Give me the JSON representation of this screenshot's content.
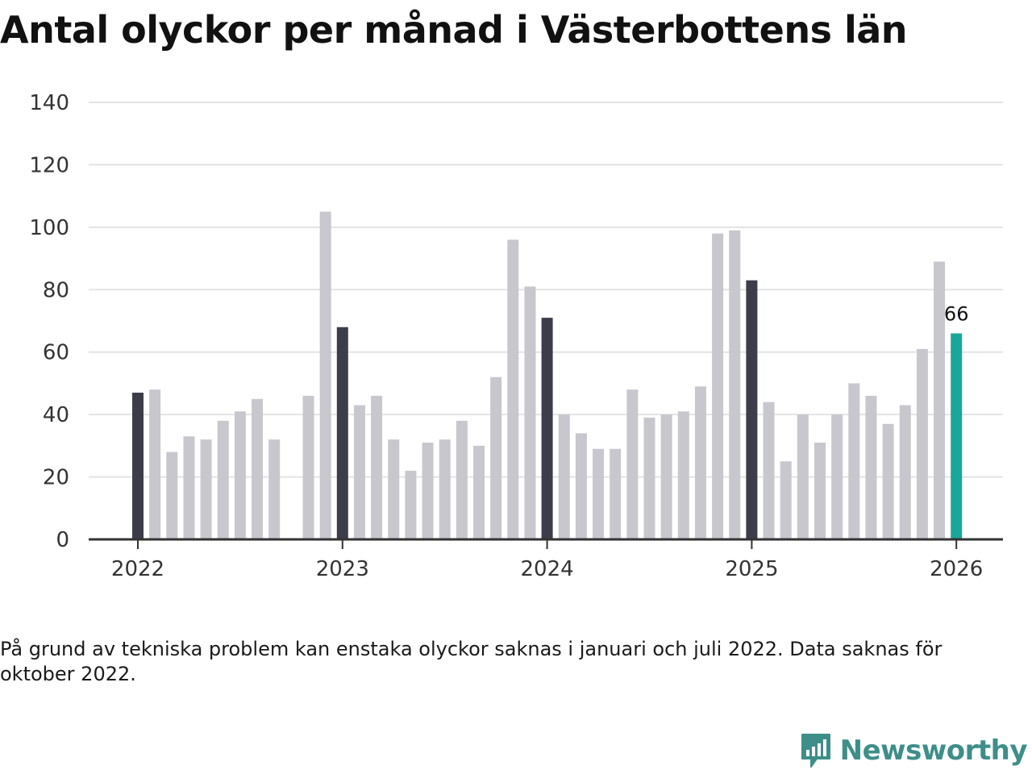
{
  "page": {
    "title": "Antal olyckor per månad i Västerbottens län",
    "note": "På grund av tekniska problem kan enstaka olyckor saknas i januari och juli 2022. Data saknas för oktober 2022.",
    "brand": "Newsworthy"
  },
  "colors": {
    "bar_default": "#c8c7ce",
    "bar_january": "#3d3c4a",
    "bar_latest": "#1ba69a",
    "gridline": "#e3e3e3",
    "axis": "#333333",
    "brand": "#3e8e89"
  },
  "chart_data": {
    "type": "bar",
    "title": "Antal olyckor per månad i Västerbottens län",
    "xlabel": "",
    "ylabel": "",
    "ylim": [
      0,
      140
    ],
    "yticks": [
      0,
      20,
      40,
      60,
      80,
      100,
      120,
      140
    ],
    "xticks": [
      "2022",
      "2023",
      "2024",
      "2025",
      "2026"
    ],
    "series": [
      {
        "name": "Antal olyckor",
        "points": [
          {
            "period": "2022-01",
            "value": 47
          },
          {
            "period": "2022-02",
            "value": 48
          },
          {
            "period": "2022-03",
            "value": 28
          },
          {
            "period": "2022-04",
            "value": 33
          },
          {
            "period": "2022-05",
            "value": 32
          },
          {
            "period": "2022-06",
            "value": 38
          },
          {
            "period": "2022-07",
            "value": 41
          },
          {
            "period": "2022-08",
            "value": 45
          },
          {
            "period": "2022-09",
            "value": 32
          },
          {
            "period": "2022-10",
            "value": null
          },
          {
            "period": "2022-11",
            "value": 46
          },
          {
            "period": "2022-12",
            "value": 105
          },
          {
            "period": "2023-01",
            "value": 68
          },
          {
            "period": "2023-02",
            "value": 43
          },
          {
            "period": "2023-03",
            "value": 46
          },
          {
            "period": "2023-04",
            "value": 32
          },
          {
            "period": "2023-05",
            "value": 22
          },
          {
            "period": "2023-06",
            "value": 31
          },
          {
            "period": "2023-07",
            "value": 32
          },
          {
            "period": "2023-08",
            "value": 38
          },
          {
            "period": "2023-09",
            "value": 30
          },
          {
            "period": "2023-10",
            "value": 52
          },
          {
            "period": "2023-11",
            "value": 96
          },
          {
            "period": "2023-12",
            "value": 81
          },
          {
            "period": "2024-01",
            "value": 71
          },
          {
            "period": "2024-02",
            "value": 40
          },
          {
            "period": "2024-03",
            "value": 34
          },
          {
            "period": "2024-04",
            "value": 29
          },
          {
            "period": "2024-05",
            "value": 29
          },
          {
            "period": "2024-06",
            "value": 48
          },
          {
            "period": "2024-07",
            "value": 39
          },
          {
            "period": "2024-08",
            "value": 40
          },
          {
            "period": "2024-09",
            "value": 41
          },
          {
            "period": "2024-10",
            "value": 49
          },
          {
            "period": "2024-11",
            "value": 98
          },
          {
            "period": "2024-12",
            "value": 99
          },
          {
            "period": "2025-01",
            "value": 83
          },
          {
            "period": "2025-02",
            "value": 44
          },
          {
            "period": "2025-03",
            "value": 25
          },
          {
            "period": "2025-04",
            "value": 40
          },
          {
            "period": "2025-05",
            "value": 31
          },
          {
            "period": "2025-06",
            "value": 40
          },
          {
            "period": "2025-07",
            "value": 50
          },
          {
            "period": "2025-08",
            "value": 46
          },
          {
            "period": "2025-09",
            "value": 37
          },
          {
            "period": "2025-10",
            "value": 43
          },
          {
            "period": "2025-11",
            "value": 61
          },
          {
            "period": "2025-12",
            "value": 89
          },
          {
            "period": "2026-01",
            "value": 66
          }
        ]
      }
    ],
    "annotations": [
      {
        "period": "2026-01",
        "text": "66"
      }
    ]
  }
}
